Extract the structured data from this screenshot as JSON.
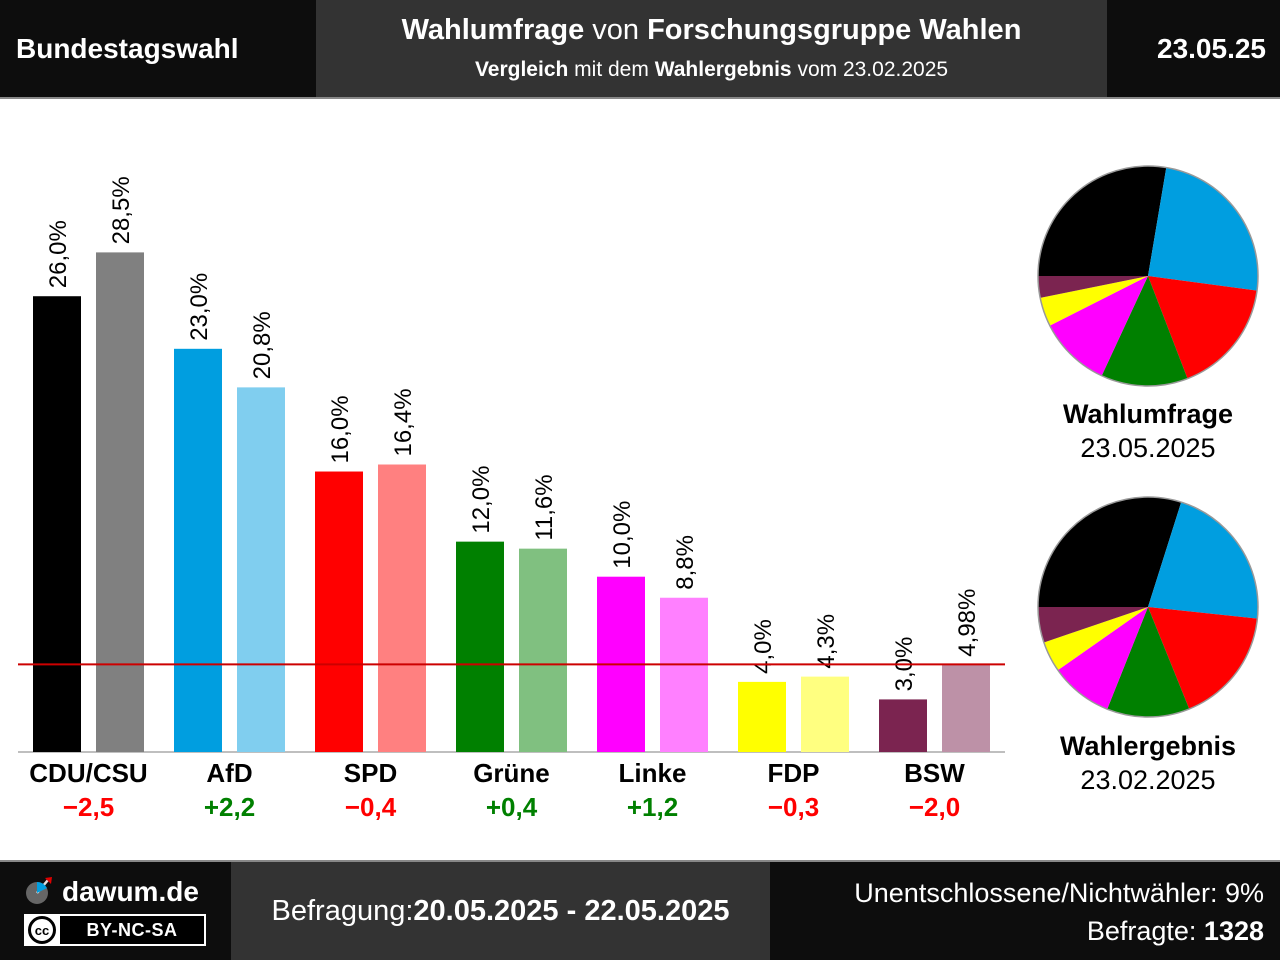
{
  "header": {
    "left": "Bundestagswahl",
    "title_bold1": "Wahlumfrage",
    "title_mid": " von ",
    "title_bold2": "Forschungsgruppe Wahlen",
    "sub_bold1": "Vergleich",
    "sub_mid": " mit dem ",
    "sub_bold2": "Wahlergebnis",
    "sub_end": " vom 23.02.2025",
    "date": "23.05.25"
  },
  "chart_data": {
    "type": "bar",
    "categories": [
      "CDU/CSU",
      "AfD",
      "SPD",
      "Grüne",
      "Linke",
      "FDP",
      "BSW"
    ],
    "series": [
      {
        "name": "Wahlumfrage",
        "values": [
          26.0,
          23.0,
          16.0,
          12.0,
          10.0,
          4.0,
          3.0
        ],
        "labels": [
          "26,0%",
          "23,0%",
          "16,0%",
          "12,0%",
          "10,0%",
          "4,0%",
          "3,0%"
        ]
      },
      {
        "name": "Wahlergebnis",
        "values": [
          28.5,
          20.8,
          16.4,
          11.6,
          8.8,
          4.3,
          4.98
        ],
        "labels": [
          "28,5%",
          "20,8%",
          "16,4%",
          "11,6%",
          "8,8%",
          "4,3%",
          "4,98%"
        ]
      }
    ],
    "changes": [
      "−2,5",
      "+2,2",
      "−0,4",
      "+0,4",
      "+1,2",
      "−0,3",
      "−2,0"
    ],
    "change_colors": [
      "#ff0000",
      "#008000",
      "#ff0000",
      "#008000",
      "#008000",
      "#ff0000",
      "#ff0000"
    ],
    "colors_survey": [
      "#000000",
      "#009ee0",
      "#ff0000",
      "#008000",
      "#ff00ff",
      "#ffff00",
      "#7b2450"
    ],
    "colors_result": [
      "#808080",
      "#80ceef",
      "#ff8080",
      "#80c080",
      "#ff80ff",
      "#ffff80",
      "#bd91a7"
    ],
    "threshold": 5,
    "threshold_color": "#cc0000",
    "ylim": [
      0,
      30
    ]
  },
  "pies": [
    {
      "title": "Wahlumfrage",
      "date": "23.05.2025"
    },
    {
      "title": "Wahlergebnis",
      "date": "23.02.2025"
    }
  ],
  "footer": {
    "logo": "dawum.de",
    "license": "BY-NC-SA",
    "license_icon": "cc",
    "survey_label": "Befragung: ",
    "survey_period": "20.05.2025 - 22.05.2025",
    "undecided": "Unentschlossene/Nichtwähler: 9%",
    "respondents_label": "Befragte: ",
    "respondents": "1328"
  }
}
